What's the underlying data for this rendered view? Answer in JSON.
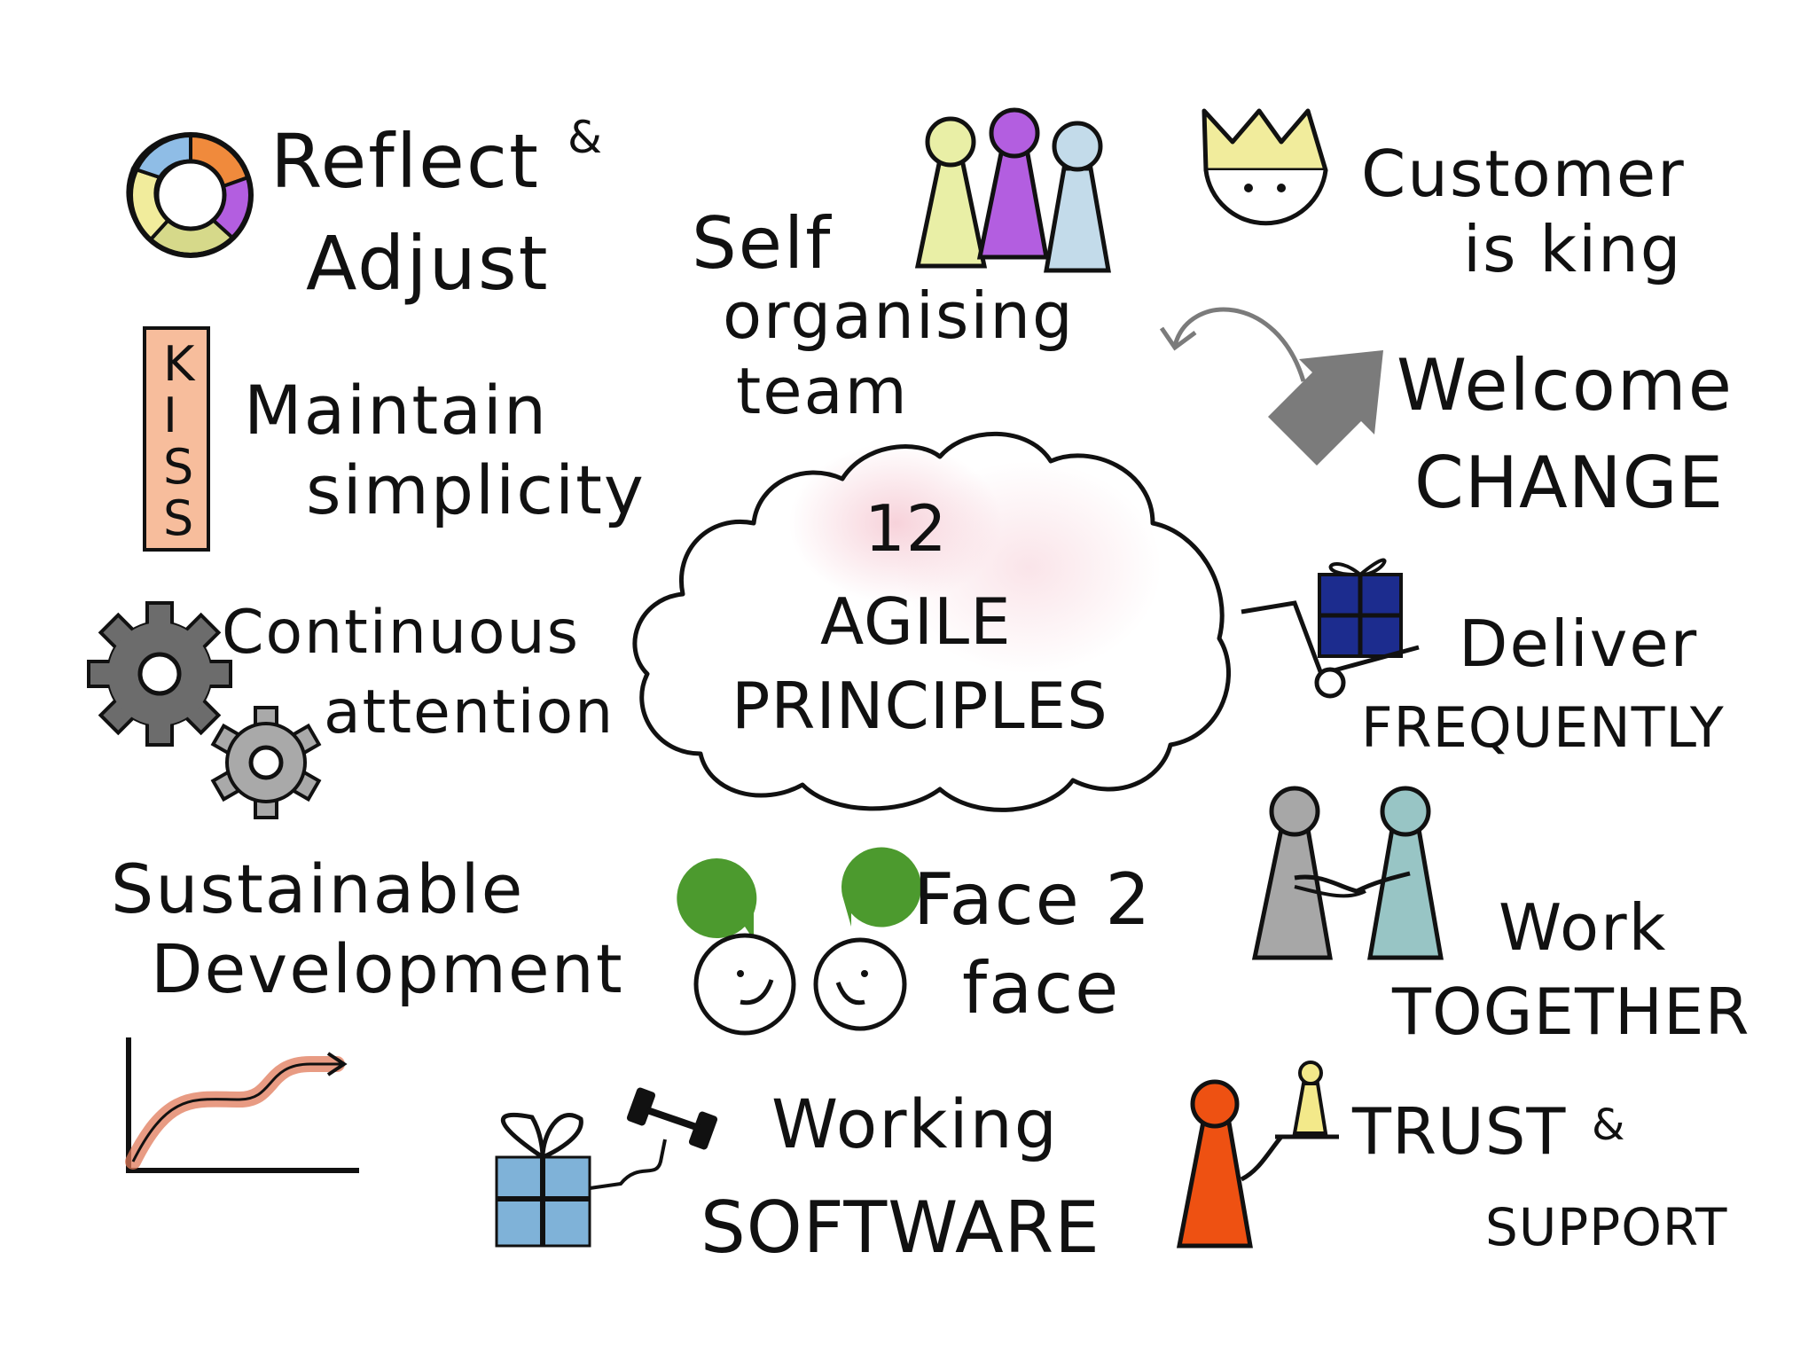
{
  "cloud": {
    "number": "12",
    "line1": "AGILE",
    "line2": "PRINCIPLES"
  },
  "principles": {
    "reflect": {
      "line1": "Reflect",
      "amp": "&",
      "line2": "Adjust"
    },
    "team": {
      "line1": "Self",
      "line2": "organising",
      "line3": "team"
    },
    "customer": {
      "line1": "Customer",
      "line2": "is king"
    },
    "simplicity": {
      "badge": "KISS",
      "line1": "Maintain",
      "line2": "simplicity"
    },
    "change": {
      "line1": "Welcome",
      "line2": "CHANGE"
    },
    "attention": {
      "line1": "Continuous",
      "line2": "attention"
    },
    "deliver": {
      "line1": "Deliver",
      "line2": "FREQUENTLY"
    },
    "sustainable": {
      "line1": "Sustainable",
      "line2": "Development"
    },
    "face": {
      "line1": "Face 2",
      "line2": "face"
    },
    "together": {
      "line1": "Work",
      "line2": "TOGETHER"
    },
    "software": {
      "line1": "Working",
      "line2": "SOFTWARE"
    },
    "trust": {
      "line1": "TRUST",
      "amp": "&",
      "line2": "SUPPORT"
    }
  },
  "colors": {
    "ink": "#111111",
    "pawn_yellow": "#e9efa6",
    "pawn_purple": "#b35ee0",
    "pawn_blue": "#c3dbea",
    "crown": "#f1ec9c",
    "kiss": "#f7bd9c",
    "arrow_gray": "#7b7b7b",
    "gift_navy": "#1c2c8e",
    "gear_dark": "#6c6c6c",
    "gear_light": "#a9a9a9",
    "bubble_green": "#4c9a2e",
    "pawn_gray": "#a7a7a7",
    "pawn_teal": "#98c5c5",
    "trend_red": "#e07a5a",
    "gift_blue": "#7fb2d8",
    "pawn_orange": "#ee5112",
    "pawn_small_yellow": "#f3e98a",
    "cloud_pink": "#f6cdd6"
  }
}
